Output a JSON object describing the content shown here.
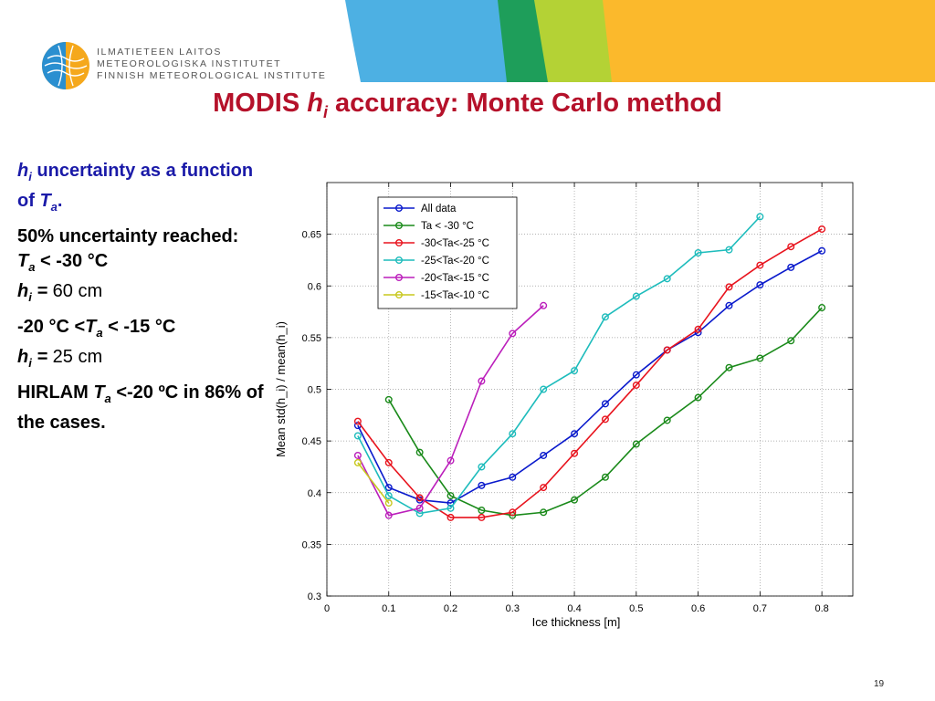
{
  "institute": {
    "line1": "ILMATIETEEN LAITOS",
    "line2": "METEOROLOGISKA INSTITUTET",
    "line3": "FINNISH METEOROLOGICAL INSTITUTE"
  },
  "title": {
    "pre": "MODIS ",
    "var": "h",
    "sub": "i",
    "post": " accuracy: Monte Carlo method"
  },
  "bullets": {
    "b1_var": "h",
    "b1_sub": "i",
    "b1_text": " uncertainty as a function of ",
    "b1_var2": "T",
    "b1_sub2": "a",
    "b1_end": ".",
    "b2_line1": "50% uncertainty reached:",
    "b2_tvar": "T",
    "b2_tsub": "a",
    "b2_tval": " < -30 °C",
    "b2_hvar": "h",
    "b2_hsub": "i",
    "b2_heq": " = ",
    "b2_hval": "60 cm",
    "b3_pre": "-20 °C <",
    "b3_tvar": "T",
    "b3_tsub": "a",
    "b3_post": " < -15 °C",
    "b3_hvar": "h",
    "b3_hsub": "i",
    "b3_heq": " = ",
    "b3_hval": "25 cm",
    "b4_pre": "HIRLAM ",
    "b4_tvar": "T",
    "b4_tsub": "a",
    "b4_post": " <-20 ºC in 86% of the cases."
  },
  "page_number": "19",
  "chart_data": {
    "type": "line",
    "xlabel": "Ice thickness [m]",
    "ylabel": "Mean std(h_i) / mean(h_i)",
    "xlim": [
      0,
      0.85
    ],
    "ylim": [
      0.3,
      0.7
    ],
    "xticks": [
      "0",
      "0.1",
      "0.2",
      "0.3",
      "0.4",
      "0.5",
      "0.6",
      "0.7",
      "0.8"
    ],
    "xtick_values": [
      0,
      0.1,
      0.2,
      0.3,
      0.4,
      0.5,
      0.6,
      0.7,
      0.8
    ],
    "yticks": [
      "0.3",
      "0.35",
      "0.4",
      "0.45",
      "0.5",
      "0.55",
      "0.6",
      "0.65"
    ],
    "ytick_values": [
      0.3,
      0.35,
      0.4,
      0.45,
      0.5,
      0.55,
      0.6,
      0.65
    ],
    "grid": true,
    "legend_position": "top-left",
    "series": [
      {
        "name": "All data",
        "color": "#0a1acc",
        "x": [
          0.05,
          0.1,
          0.15,
          0.2,
          0.25,
          0.3,
          0.35,
          0.4,
          0.45,
          0.5,
          0.55,
          0.6,
          0.65,
          0.7,
          0.75,
          0.8
        ],
        "y": [
          0.465,
          0.405,
          0.393,
          0.39,
          0.407,
          0.415,
          0.436,
          0.457,
          0.486,
          0.514,
          0.538,
          0.555,
          0.581,
          0.601,
          0.618,
          0.634
        ]
      },
      {
        "name": "Ta < -30 °C",
        "color": "#1a8a1a",
        "x": [
          0.1,
          0.15,
          0.2,
          0.25,
          0.3,
          0.35,
          0.4,
          0.45,
          0.5,
          0.55,
          0.6,
          0.65,
          0.7,
          0.75,
          0.8
        ],
        "y": [
          0.49,
          0.439,
          0.397,
          0.383,
          0.378,
          0.381,
          0.393,
          0.415,
          0.447,
          0.47,
          0.492,
          0.521,
          0.53,
          0.547,
          0.579
        ]
      },
      {
        "name": "-30<Ta<-25 °C",
        "color": "#e8141e",
        "x": [
          0.05,
          0.1,
          0.15,
          0.2,
          0.25,
          0.3,
          0.35,
          0.4,
          0.45,
          0.5,
          0.55,
          0.6,
          0.65,
          0.7,
          0.75,
          0.8
        ],
        "y": [
          0.469,
          0.429,
          0.395,
          0.376,
          0.376,
          0.381,
          0.405,
          0.438,
          0.471,
          0.504,
          0.538,
          0.558,
          0.599,
          0.62,
          0.638,
          0.655
        ]
      },
      {
        "name": "-25<Ta<-20 °C",
        "color": "#1ebcbc",
        "x": [
          0.05,
          0.1,
          0.15,
          0.2,
          0.25,
          0.3,
          0.35,
          0.4,
          0.45,
          0.5,
          0.55,
          0.6,
          0.65,
          0.7
        ],
        "y": [
          0.455,
          0.397,
          0.38,
          0.385,
          0.425,
          0.457,
          0.5,
          0.518,
          0.57,
          0.59,
          0.607,
          0.632,
          0.635,
          0.667
        ]
      },
      {
        "name": "-20<Ta<-15 °C",
        "color": "#bb1ebb",
        "x": [
          0.05,
          0.1,
          0.15,
          0.2,
          0.25,
          0.3,
          0.35
        ],
        "y": [
          0.436,
          0.378,
          0.385,
          0.431,
          0.508,
          0.554,
          0.581
        ]
      },
      {
        "name": "-15<Ta<-10 °C",
        "color": "#c8c81e",
        "x": [
          0.05,
          0.1
        ],
        "y": [
          0.429,
          0.39
        ]
      }
    ]
  }
}
